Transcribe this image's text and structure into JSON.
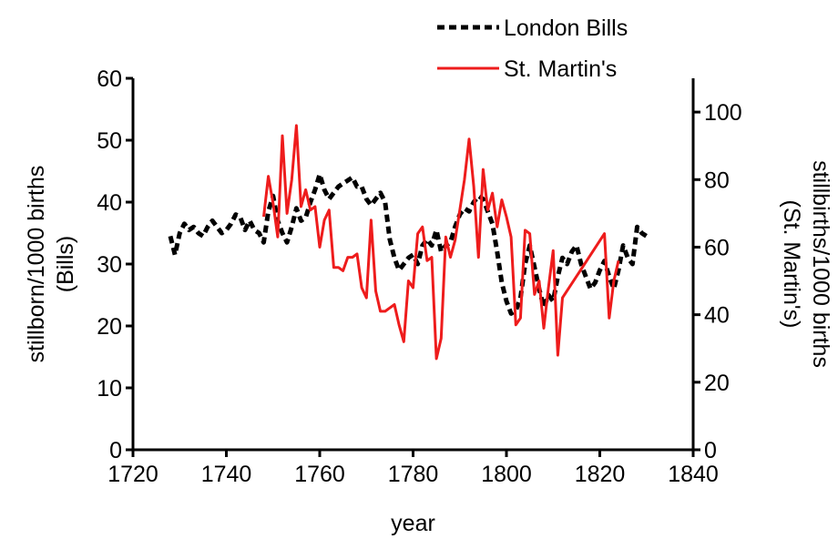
{
  "chart_data": {
    "type": "line",
    "xlabel": "year",
    "ylabel_left": [
      "stillborn/1000 births",
      "(Bills)"
    ],
    "ylabel_right": [
      "stillbirths/1000 births",
      "(St. Martin's)"
    ],
    "xlim": [
      1720,
      1840
    ],
    "ylim_left": [
      0,
      60
    ],
    "ylim_right": [
      0,
      110
    ],
    "xticks": [
      1720,
      1740,
      1760,
      1780,
      1800,
      1820,
      1840
    ],
    "yticks_left": [
      0,
      10,
      20,
      30,
      40,
      50,
      60
    ],
    "yticks_right": [
      0,
      20,
      40,
      60,
      80,
      100
    ],
    "legend_position": "top-right",
    "grid": false,
    "series": [
      {
        "name": "London Bills",
        "axis": "left",
        "color": "#000000",
        "style": "dashed",
        "x": [
          1728,
          1729,
          1730,
          1731,
          1732,
          1733,
          1734,
          1735,
          1736,
          1737,
          1738,
          1739,
          1740,
          1741,
          1742,
          1743,
          1744,
          1745,
          1746,
          1747,
          1748,
          1749,
          1750,
          1751,
          1752,
          1753,
          1754,
          1755,
          1756,
          1757,
          1758,
          1759,
          1760,
          1761,
          1762,
          1763,
          1764,
          1765,
          1766,
          1767,
          1768,
          1769,
          1770,
          1771,
          1772,
          1773,
          1774,
          1775,
          1776,
          1777,
          1778,
          1779,
          1780,
          1781,
          1782,
          1783,
          1784,
          1785,
          1786,
          1787,
          1788,
          1789,
          1790,
          1791,
          1792,
          1793,
          1794,
          1795,
          1796,
          1797,
          1798,
          1799,
          1800,
          1801,
          1802,
          1803,
          1804,
          1805,
          1806,
          1807,
          1808,
          1809,
          1810,
          1811,
          1812,
          1813,
          1814,
          1815,
          1816,
          1817,
          1818,
          1819,
          1820,
          1821,
          1822,
          1823,
          1824,
          1825,
          1826,
          1827,
          1828,
          1829,
          1830
        ],
        "values": [
          34.5,
          31.5,
          35.0,
          36.5,
          35.5,
          36.0,
          35.0,
          34.5,
          36.0,
          37.0,
          36.0,
          35.0,
          35.5,
          36.5,
          38.0,
          37.5,
          35.5,
          37.0,
          35.5,
          35.0,
          33.5,
          38.5,
          41.0,
          37.0,
          35.0,
          33.5,
          36.0,
          39.0,
          37.0,
          37.5,
          40.0,
          42.0,
          44.5,
          42.0,
          40.5,
          41.5,
          42.5,
          43.0,
          43.5,
          44.0,
          42.5,
          42.5,
          40.5,
          39.5,
          40.5,
          41.5,
          40.0,
          34.0,
          31.0,
          29.0,
          30.0,
          31.0,
          31.5,
          30.0,
          33.0,
          34.0,
          33.0,
          35.5,
          32.0,
          33.0,
          33.5,
          36.0,
          38.0,
          39.0,
          38.5,
          40.0,
          41.0,
          40.5,
          38.5,
          36.5,
          32.0,
          27.0,
          24.0,
          22.0,
          22.5,
          24.5,
          30.0,
          33.0,
          29.5,
          26.0,
          23.0,
          25.0,
          24.0,
          28.0,
          31.0,
          30.0,
          32.0,
          33.0,
          30.0,
          28.0,
          26.0,
          27.0,
          29.0,
          30.5,
          28.0,
          26.0,
          29.0,
          33.0,
          31.0,
          30.0,
          36.0,
          35.0,
          34.5
        ]
      },
      {
        "name": "St. Martin's",
        "axis": "right",
        "color": "#ee1c1c",
        "style": "solid",
        "x": [
          1748,
          1749,
          1750,
          1751,
          1752,
          1753,
          1754,
          1755,
          1756,
          1757,
          1758,
          1759,
          1760,
          1761,
          1762,
          1763,
          1764,
          1765,
          1766,
          1767,
          1768,
          1769,
          1770,
          1771,
          1772,
          1773,
          1774,
          1775,
          1776,
          1777,
          1778,
          1779,
          1780,
          1781,
          1782,
          1783,
          1784,
          1785,
          1786,
          1787,
          1788,
          1789,
          1790,
          1791,
          1792,
          1793,
          1794,
          1795,
          1796,
          1797,
          1798,
          1799,
          1800,
          1801,
          1802,
          1803,
          1804,
          1805,
          1806,
          1807,
          1808,
          1809,
          1810,
          1811,
          1812,
          1821,
          1822,
          1823,
          1824
        ],
        "values": [
          69,
          81,
          73,
          63,
          93,
          70,
          80,
          96,
          72,
          77,
          71,
          72,
          60,
          68,
          71,
          54,
          54,
          53,
          57,
          57,
          58,
          48,
          45,
          68,
          47,
          41,
          41,
          42,
          43,
          37,
          32,
          50,
          48,
          64,
          66,
          56,
          57,
          27,
          33,
          63,
          57,
          62,
          71,
          80,
          92,
          78,
          57,
          83,
          71,
          76,
          66,
          74,
          69,
          63,
          37,
          39,
          65,
          64,
          46,
          50,
          36,
          48,
          59,
          28,
          45,
          64,
          39,
          50,
          56
        ]
      }
    ]
  }
}
